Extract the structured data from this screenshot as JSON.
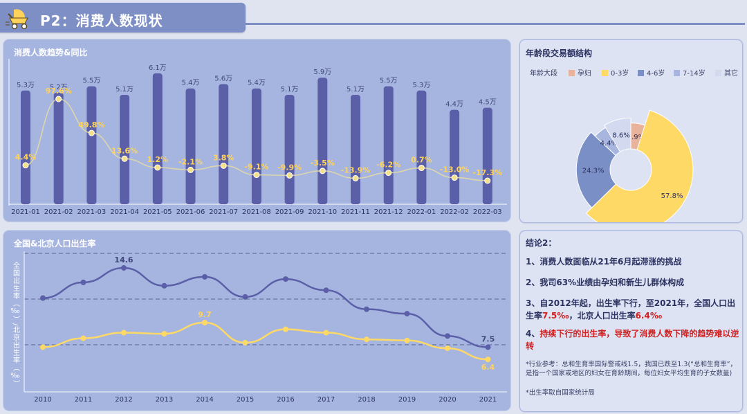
{
  "header": {
    "title": "P2：消费人数现状"
  },
  "trend": {
    "title": "消费人数趋势&同比",
    "chart_data": {
      "type": "bar",
      "categories": [
        "2021-01",
        "2021-02",
        "2021-03",
        "2021-04",
        "2021-05",
        "2021-06",
        "2021-07",
        "2021-08",
        "2021-09",
        "2021-10",
        "2021-11",
        "2021-12",
        "2022-01",
        "2022-02",
        "2022-03"
      ],
      "series": [
        {
          "values": [
            5.3,
            5.2,
            5.5,
            5.1,
            6.1,
            5.4,
            5.6,
            5.4,
            5.1,
            5.9,
            5.1,
            5.5,
            5.3,
            4.4,
            4.5
          ],
          "labels": [
            "5.3万",
            "5.2万",
            "5.5万",
            "5.1万",
            "6.1万",
            "5.4万",
            "5.6万",
            "5.4万",
            "5.1万",
            "5.9万",
            "5.1万",
            "5.5万",
            "5.3万",
            "4.4万",
            "4.5万"
          ]
        },
        {
          "type": "line",
          "values": [
            4.4,
            97.6,
            49.8,
            13.6,
            1.2,
            -2.1,
            3.8,
            -9.1,
            -9.9,
            -3.5,
            -13.9,
            -6.2,
            0.7,
            -13.0,
            -17.3
          ],
          "labels": [
            "4.4%",
            "97.6%",
            "49.8%",
            "13.6%",
            "1.2%",
            "-2.1%",
            "3.8%",
            "-9.1%",
            "-9.9%",
            "-3.5%",
            "-13.9%",
            "-6.2%",
            "0.7%",
            "-13.0%",
            "-17.3%"
          ]
        }
      ]
    }
  },
  "age": {
    "title": "年龄段交易额结构",
    "legend_title": "年龄大段",
    "chart_data": {
      "type": "pie",
      "categories": [
        "孕妇",
        "0-3岁",
        "4-6岁",
        "7-14岁",
        "其它"
      ],
      "values": [
        4.9,
        57.8,
        24.3,
        4.4,
        8.6
      ],
      "labels": [
        "4.9%",
        "57.8%",
        "24.3%",
        "4.4%",
        "8.6%"
      ],
      "colors": [
        "#e8b39a",
        "#ffd966",
        "#7b8fc7",
        "#a8b6df",
        "#d3daf0"
      ]
    }
  },
  "birth": {
    "title": "全国&北京人口出生率",
    "ylabel": "全国出生率（‰）/北京出生率（‰）",
    "chart_data": {
      "type": "line",
      "x": [
        "2010",
        "2011",
        "2012",
        "2013",
        "2014",
        "2015",
        "2016",
        "2017",
        "2018",
        "2019",
        "2020",
        "2021"
      ],
      "series": [
        {
          "values": [
            11.9,
            13.3,
            14.6,
            13.0,
            13.8,
            12.0,
            13.6,
            12.6,
            10.9,
            10.5,
            8.5,
            7.5
          ]
        },
        {
          "values": [
            7.5,
            8.3,
            8.8,
            8.7,
            9.7,
            7.9,
            9.1,
            8.8,
            8.2,
            8.1,
            7.4,
            6.4
          ]
        }
      ],
      "labels": [
        {
          "index": 2,
          "series": 0,
          "text": "14.6"
        },
        {
          "index": 11,
          "series": 0,
          "text": "7.5"
        },
        {
          "index": 4,
          "series": 1,
          "text": "9.7"
        },
        {
          "index": 11,
          "series": 1,
          "text": "6.4"
        }
      ]
    }
  },
  "conclusion": {
    "title": "结论2：",
    "p1": "1、消费人数面临从21年6月起滞涨的挑战",
    "p2": "2、我司63%业绩由孕妇和新生儿群体构成",
    "p3a": "3、自2012年起，出生率下行，至2021年，全国人口出生率",
    "p3b": "7.5‰",
    "p3c": "，北京人口出生率",
    "p3d": "6.4‰",
    "p4a": "4、",
    "p4b": "持续下行的出生率，导致了消费人数下降的趋势难以逆转",
    "note1": "*行业参考：总和生育率国际警戒线1.5，我国已跌至1.3(“总和生育率”，是指一个国家或地区的妇女在育龄期间，每位妇女平均生育的子女数量)",
    "note2": "*出生率取自国家统计局"
  }
}
